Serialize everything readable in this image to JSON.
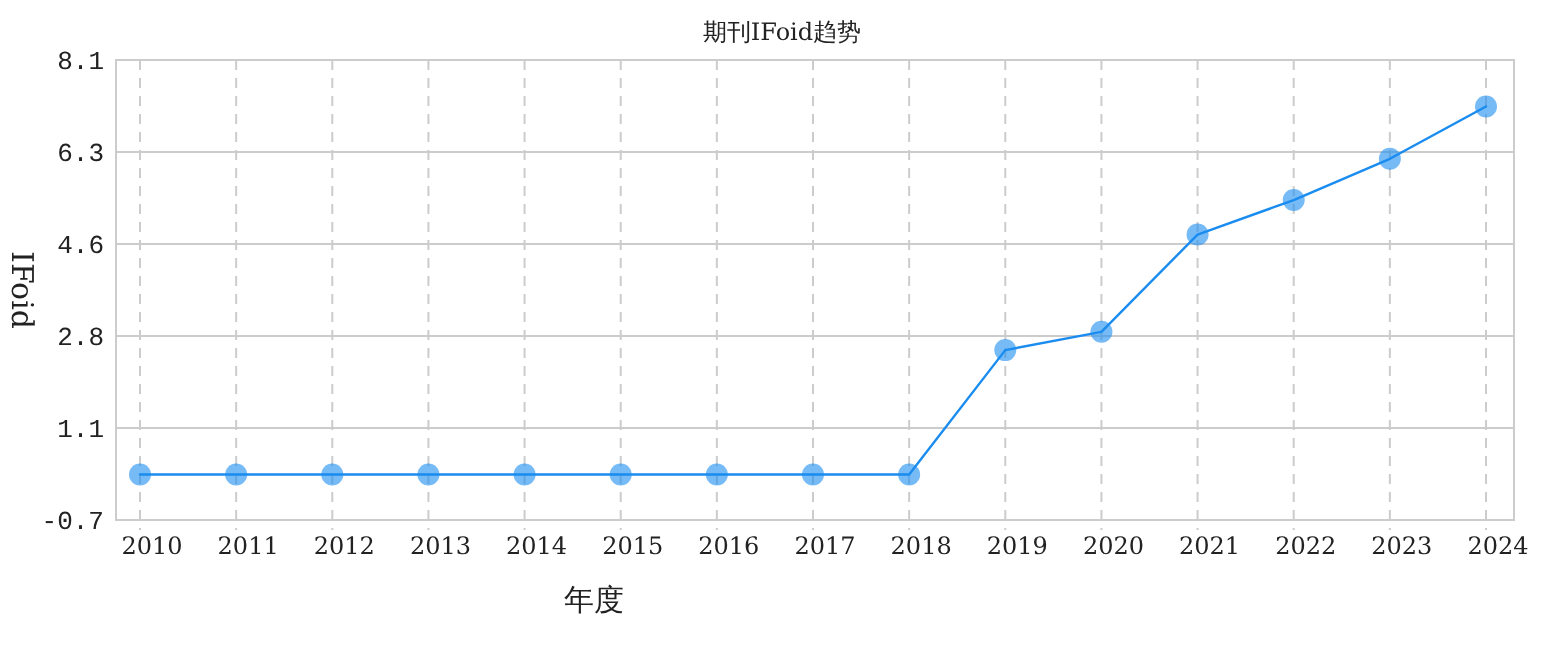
{
  "chart_data": {
    "type": "line",
    "title": "期刊IFoid趋势",
    "xlabel": "年度",
    "ylabel": "IFoid",
    "categories": [
      "2010",
      "2011",
      "2012",
      "2013",
      "2014",
      "2015",
      "2016",
      "2017",
      "2018",
      "2019",
      "2020",
      "2021",
      "2022",
      "2023",
      "2024"
    ],
    "series": [
      {
        "color": "#1a8cf0",
        "values": [
          0.17,
          0.17,
          0.17,
          0.17,
          0.17,
          0.17,
          0.17,
          0.17,
          0.17,
          2.55,
          2.9,
          4.76,
          5.42,
          6.21,
          7.21
        ]
      }
    ],
    "ylim": [
      -0.7,
      8.1
    ],
    "yticks": [
      {
        "value": -0.7,
        "label": "-0.7"
      },
      {
        "value": 1.06,
        "label": "1.1"
      },
      {
        "value": 2.82,
        "label": "2.8"
      },
      {
        "value": 4.58,
        "label": "4.6"
      },
      {
        "value": 6.34,
        "label": "6.3"
      },
      {
        "value": 8.1,
        "label": "8.1"
      }
    ],
    "grid": true,
    "marker": "circle",
    "line_style": "solid"
  }
}
